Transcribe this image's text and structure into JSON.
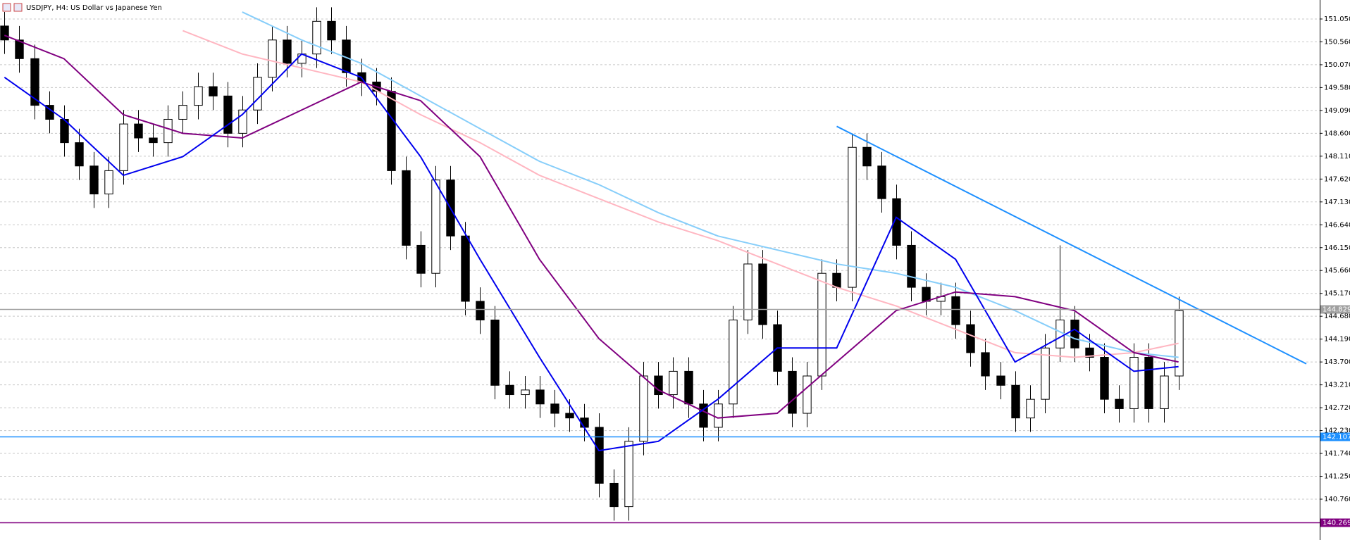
{
  "chart_data": {
    "type": "candlestick",
    "title": "USDJPY, H4:  US Dollar vs Japanese Yen",
    "xlim": [
      -0.3,
      88.5
    ],
    "ylim": [
      139.885,
      151.457
    ],
    "grid": true,
    "yticks": [
      {
        "value": 151.05,
        "label": "151.050"
      },
      {
        "value": 150.56,
        "label": "150.560"
      },
      {
        "value": 150.07,
        "label": "150.070"
      },
      {
        "value": 149.58,
        "label": "149.580"
      },
      {
        "value": 149.09,
        "label": "149.090"
      },
      {
        "value": 148.6,
        "label": "148.600"
      },
      {
        "value": 148.11,
        "label": "148.110"
      },
      {
        "value": 147.62,
        "label": "147.620"
      },
      {
        "value": 147.13,
        "label": "147.130"
      },
      {
        "value": 146.64,
        "label": "146.640"
      },
      {
        "value": 146.15,
        "label": "146.150"
      },
      {
        "value": 145.66,
        "label": "145.660"
      },
      {
        "value": 145.17,
        "label": "145.170"
      },
      {
        "value": 144.68,
        "label": "144.680"
      },
      {
        "value": 144.19,
        "label": "144.190"
      },
      {
        "value": 143.7,
        "label": "143.700"
      },
      {
        "value": 143.21,
        "label": "143.210"
      },
      {
        "value": 142.72,
        "label": "142.720"
      },
      {
        "value": 142.23,
        "label": "142.230"
      },
      {
        "value": 141.74,
        "label": "141.740"
      },
      {
        "value": 141.25,
        "label": "141.250"
      },
      {
        "value": 140.76,
        "label": "140.760"
      }
    ],
    "ohlc": {
      "open": [
        150.9,
        150.6,
        150.2,
        149.2,
        148.9,
        148.4,
        147.9,
        147.3,
        147.8,
        148.8,
        148.5,
        148.4,
        148.9,
        149.2,
        149.6,
        149.4,
        148.6,
        149.1,
        149.8,
        150.6,
        150.1,
        150.3,
        151.0,
        150.6,
        149.9,
        149.7,
        149.5,
        147.8,
        146.2,
        145.6,
        147.6,
        146.4,
        145.0,
        144.6,
        143.2,
        143.0,
        143.1,
        142.8,
        142.6,
        142.5,
        142.3,
        141.1,
        140.6,
        142.0,
        143.4,
        143.0,
        143.5,
        142.8,
        142.3,
        142.8,
        144.6,
        145.8,
        144.5,
        143.5,
        142.6,
        143.4,
        145.6,
        145.3,
        148.3,
        147.9,
        147.2,
        146.2,
        145.3,
        145.0,
        145.1,
        144.5,
        143.9,
        143.4,
        143.2,
        142.5,
        142.9,
        144.0,
        144.6,
        144.0,
        143.8,
        142.9,
        142.7,
        143.8,
        142.7,
        143.4
      ],
      "high": [
        151.2,
        150.9,
        150.5,
        149.5,
        149.2,
        148.7,
        148.2,
        148.1,
        149.1,
        149.1,
        148.8,
        149.2,
        149.5,
        149.9,
        149.9,
        149.7,
        149.4,
        150.1,
        150.9,
        150.9,
        150.6,
        151.3,
        151.3,
        150.9,
        150.2,
        150.0,
        149.8,
        148.1,
        146.5,
        147.9,
        147.9,
        146.7,
        145.3,
        144.9,
        143.5,
        143.4,
        143.4,
        143.1,
        142.9,
        142.8,
        142.6,
        141.4,
        142.3,
        143.7,
        143.7,
        143.8,
        143.8,
        143.1,
        143.1,
        144.9,
        146.1,
        146.1,
        144.8,
        143.8,
        143.7,
        145.9,
        145.9,
        148.6,
        148.6,
        148.2,
        147.5,
        146.5,
        145.6,
        145.4,
        145.4,
        144.8,
        144.2,
        143.7,
        143.5,
        143.2,
        144.3,
        146.2,
        144.9,
        144.3,
        144.1,
        143.2,
        144.1,
        144.1,
        143.7,
        145.1
      ],
      "low": [
        150.3,
        149.9,
        148.9,
        148.6,
        148.1,
        147.6,
        147.0,
        147.0,
        147.5,
        148.2,
        148.1,
        148.1,
        148.6,
        148.9,
        149.1,
        148.3,
        148.3,
        148.8,
        149.5,
        149.8,
        149.8,
        150.0,
        150.3,
        149.6,
        149.4,
        149.2,
        147.5,
        145.9,
        145.3,
        145.3,
        146.1,
        144.7,
        144.3,
        142.9,
        142.7,
        142.7,
        142.5,
        142.3,
        142.2,
        142.0,
        140.8,
        140.3,
        140.3,
        141.7,
        142.7,
        142.7,
        142.5,
        142.0,
        142.0,
        142.5,
        144.3,
        144.2,
        143.2,
        142.3,
        142.3,
        143.1,
        145.0,
        145.0,
        147.6,
        146.9,
        145.9,
        145.0,
        144.7,
        144.7,
        144.2,
        143.6,
        143.1,
        142.9,
        142.2,
        142.2,
        142.6,
        143.7,
        143.7,
        143.5,
        142.6,
        142.4,
        142.4,
        142.4,
        142.4,
        143.1
      ],
      "close": [
        150.6,
        150.2,
        149.2,
        148.9,
        148.4,
        147.9,
        147.3,
        147.8,
        148.8,
        148.5,
        148.4,
        148.9,
        149.2,
        149.6,
        149.4,
        148.6,
        149.1,
        149.8,
        150.6,
        150.1,
        150.3,
        151.0,
        150.6,
        149.9,
        149.7,
        149.5,
        147.8,
        146.2,
        145.6,
        147.6,
        146.4,
        145.0,
        144.6,
        143.2,
        143.0,
        143.1,
        142.8,
        142.6,
        142.5,
        142.3,
        141.1,
        140.6,
        142.0,
        143.4,
        143.0,
        143.5,
        142.8,
        142.3,
        142.8,
        144.6,
        145.8,
        144.5,
        143.5,
        142.6,
        143.4,
        145.6,
        145.3,
        148.3,
        147.9,
        147.2,
        146.2,
        145.3,
        145.0,
        145.1,
        144.5,
        143.9,
        143.4,
        143.2,
        142.5,
        142.9,
        144.0,
        144.6,
        144.0,
        143.8,
        142.9,
        142.7,
        143.8,
        142.7,
        143.4,
        144.8
      ]
    },
    "lines": [
      {
        "color": "#87cefa",
        "x": [
          16,
          20,
          24,
          28,
          32,
          36,
          40,
          44,
          48,
          52,
          56,
          60,
          64,
          68,
          72,
          76,
          79
        ],
        "values": [
          151.2,
          150.6,
          150.1,
          149.4,
          148.7,
          148.0,
          147.5,
          146.9,
          146.4,
          146.1,
          145.8,
          145.6,
          145.3,
          144.8,
          144.2,
          143.9,
          143.8
        ]
      },
      {
        "color": "#ffb6c1",
        "x": [
          12,
          16,
          20,
          24,
          28,
          32,
          36,
          40,
          44,
          48,
          52,
          56,
          60,
          64,
          68,
          72,
          76,
          79
        ],
        "values": [
          150.8,
          150.3,
          150.0,
          149.7,
          149.0,
          148.4,
          147.7,
          147.2,
          146.7,
          146.3,
          145.8,
          145.3,
          144.9,
          144.4,
          143.9,
          143.8,
          143.9,
          144.1
        ]
      },
      {
        "color": "#800080",
        "x": [
          0,
          4,
          8,
          12,
          16,
          20,
          24,
          28,
          32,
          36,
          40,
          44,
          48,
          52,
          56,
          60,
          64,
          68,
          72,
          76,
          79
        ],
        "values": [
          150.7,
          150.2,
          149.0,
          148.6,
          148.5,
          149.1,
          149.7,
          149.3,
          148.1,
          145.9,
          144.2,
          143.1,
          142.5,
          142.6,
          143.7,
          144.8,
          145.2,
          145.1,
          144.8,
          143.9,
          143.7
        ]
      },
      {
        "color": "#0000ee",
        "x": [
          0,
          4,
          8,
          12,
          16,
          20,
          24,
          28,
          32,
          36,
          40,
          44,
          48,
          52,
          56,
          60,
          64,
          68,
          72,
          76,
          79
        ],
        "values": [
          149.8,
          148.9,
          147.7,
          148.1,
          149.0,
          150.3,
          149.8,
          148.1,
          145.9,
          143.8,
          141.8,
          142.0,
          142.9,
          144.0,
          144.0,
          146.8,
          145.9,
          143.7,
          144.4,
          143.5,
          143.6
        ]
      }
    ],
    "trendline": {
      "color": "#1e90ff",
      "x": [
        56,
        87.6
      ],
      "values": [
        148.75,
        143.66
      ]
    },
    "levels": [
      {
        "value": 144.829,
        "color": "#a0a0a0"
      },
      {
        "value": 142.107,
        "color": "#1e90ff"
      },
      {
        "value": 140.269,
        "color": "#800080"
      }
    ]
  }
}
